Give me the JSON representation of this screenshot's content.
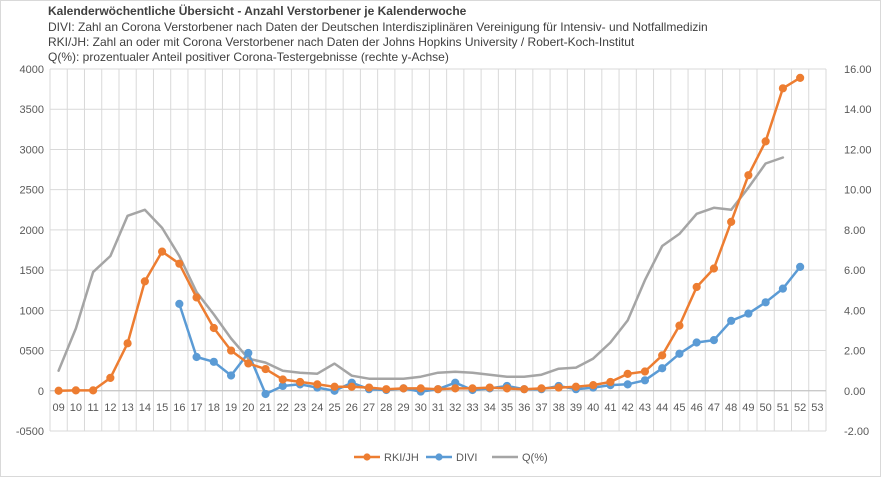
{
  "chart_data": {
    "type": "line",
    "title_lines": [
      "Kalenderwöchentliche Übersicht - Anzahl Verstorbener je Kalenderwoche",
      "DIVI: Zahl an Corona Verstorbener nach Daten der Deutschen Interdisziplinären Vereinigung für Intensiv- und Notfallmedizin",
      "RKI/JH: Zahl an oder mit Corona  Verstorbener nach Daten der Johns Hopkins University / Robert-Koch-Institut",
      "Q(%): prozentualer Anteil positiver Corona-Testergebnisse (rechte y-Achse)"
    ],
    "categories": [
      "09",
      "10",
      "11",
      "12",
      "13",
      "14",
      "15",
      "16",
      "17",
      "18",
      "19",
      "20",
      "21",
      "22",
      "23",
      "24",
      "25",
      "26",
      "27",
      "28",
      "29",
      "30",
      "31",
      "32",
      "33",
      "34",
      "35",
      "36",
      "37",
      "38",
      "39",
      "40",
      "41",
      "42",
      "43",
      "44",
      "45",
      "46",
      "47",
      "48",
      "49",
      "50",
      "51",
      "52",
      "53"
    ],
    "y_left": {
      "min": -500,
      "max": 4000,
      "ticks": [
        "-0500",
        "0",
        "0500",
        "1000",
        "1500",
        "2000",
        "2500",
        "3000",
        "3500",
        "4000"
      ]
    },
    "y_right": {
      "min": -2,
      "max": 16,
      "ticks": [
        "-2.00",
        "0.00",
        "2.00",
        "4.00",
        "6.00",
        "8.00",
        "10.00",
        "12.00",
        "14.00",
        "16.00"
      ]
    },
    "grid": true,
    "legend_position": "bottom",
    "series": [
      {
        "name": "RKI/JH",
        "axis": "left",
        "color": "#ed7d31",
        "markers": true,
        "values": [
          0,
          5,
          5,
          160,
          590,
          1360,
          1730,
          1580,
          1160,
          780,
          500,
          340,
          270,
          140,
          110,
          80,
          50,
          50,
          40,
          20,
          30,
          30,
          20,
          30,
          30,
          40,
          30,
          20,
          30,
          40,
          50,
          70,
          110,
          210,
          240,
          440,
          810,
          1290,
          1520,
          2100,
          2680,
          3100,
          3760,
          3890,
          null
        ]
      },
      {
        "name": "DIVI",
        "axis": "left",
        "color": "#5b9bd5",
        "markers": true,
        "values": [
          null,
          null,
          null,
          null,
          null,
          null,
          null,
          1080,
          420,
          360,
          190,
          470,
          -40,
          60,
          80,
          40,
          0,
          100,
          20,
          10,
          30,
          -10,
          20,
          100,
          10,
          30,
          60,
          20,
          20,
          60,
          20,
          40,
          70,
          80,
          130,
          280,
          460,
          600,
          630,
          870,
          960,
          1100,
          1270,
          1540,
          null
        ]
      },
      {
        "name": "Q(%)",
        "axis": "right",
        "color": "#a5a5a5",
        "markers": false,
        "values": [
          1.0,
          3.1,
          5.9,
          6.7,
          8.7,
          9.0,
          8.1,
          6.7,
          4.9,
          3.8,
          2.6,
          1.6,
          1.4,
          1.0,
          0.9,
          0.85,
          1.35,
          0.75,
          0.6,
          0.6,
          0.6,
          0.7,
          0.9,
          0.95,
          0.9,
          0.8,
          0.7,
          0.7,
          0.8,
          1.1,
          1.15,
          1.6,
          2.4,
          3.5,
          5.5,
          7.2,
          7.8,
          8.8,
          9.1,
          9.0,
          10.1,
          11.3,
          11.6,
          null,
          null
        ]
      }
    ]
  }
}
